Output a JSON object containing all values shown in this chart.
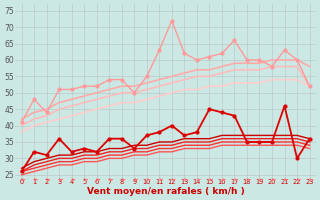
{
  "xlabel": "Vent moyen/en rafales ( km/h )",
  "background_color": "#cce8e4",
  "grid_color": "#aaaaaa",
  "x": [
    0,
    1,
    2,
    3,
    4,
    5,
    6,
    7,
    8,
    9,
    10,
    11,
    12,
    13,
    14,
    15,
    16,
    17,
    18,
    19,
    20,
    21,
    22,
    23
  ],
  "ylim": [
    24,
    77
  ],
  "yticks": [
    25,
    30,
    35,
    40,
    45,
    50,
    55,
    60,
    65,
    70,
    75
  ],
  "series": [
    {
      "y": [
        41,
        48,
        44,
        51,
        51,
        52,
        52,
        54,
        54,
        50,
        55,
        63,
        72,
        62,
        60,
        61,
        62,
        66,
        60,
        60,
        58,
        63,
        60,
        52
      ],
      "color": "#ff9999",
      "linewidth": 1.0,
      "marker": "o",
      "markersize": 2
    },
    {
      "y": [
        42,
        44,
        45,
        47,
        48,
        49,
        50,
        51,
        52,
        52,
        53,
        54,
        55,
        56,
        57,
        57,
        58,
        59,
        59,
        59,
        60,
        60,
        60,
        58
      ],
      "color": "#ffaaaa",
      "linewidth": 1.2,
      "marker": null,
      "markersize": 0
    },
    {
      "y": [
        40,
        42,
        43,
        45,
        46,
        47,
        48,
        49,
        50,
        50,
        51,
        52,
        53,
        54,
        55,
        55,
        56,
        57,
        57,
        57,
        58,
        58,
        58,
        52
      ],
      "color": "#ffbbbb",
      "linewidth": 1.2,
      "marker": null,
      "markersize": 0
    },
    {
      "y": [
        38,
        40,
        41,
        42,
        43,
        44,
        45,
        46,
        47,
        47,
        48,
        49,
        50,
        51,
        51,
        52,
        52,
        53,
        53,
        53,
        54,
        54,
        54,
        52
      ],
      "color": "#ffcccc",
      "linewidth": 1.2,
      "marker": null,
      "markersize": 0
    },
    {
      "y": [
        26,
        32,
        31,
        36,
        32,
        33,
        32,
        36,
        36,
        33,
        37,
        38,
        40,
        37,
        38,
        45,
        44,
        43,
        35,
        35,
        35,
        46,
        30,
        36
      ],
      "color": "#dd0000",
      "linewidth": 1.3,
      "marker": "o",
      "markersize": 2
    },
    {
      "y": [
        27,
        29,
        30,
        31,
        31,
        32,
        32,
        33,
        33,
        34,
        34,
        35,
        35,
        36,
        36,
        36,
        37,
        37,
        37,
        37,
        37,
        37,
        37,
        36
      ],
      "color": "#cc0000",
      "linewidth": 1.0,
      "marker": null,
      "markersize": 0
    },
    {
      "y": [
        26,
        28,
        29,
        30,
        30,
        31,
        31,
        32,
        32,
        33,
        33,
        34,
        34,
        35,
        35,
        35,
        36,
        36,
        36,
        36,
        36,
        36,
        36,
        35
      ],
      "color": "#ee2222",
      "linewidth": 1.0,
      "marker": null,
      "markersize": 0
    },
    {
      "y": [
        26,
        27,
        28,
        29,
        29,
        30,
        30,
        31,
        31,
        32,
        32,
        33,
        33,
        34,
        34,
        34,
        35,
        35,
        35,
        35,
        35,
        35,
        35,
        34
      ],
      "color": "#ff3333",
      "linewidth": 1.0,
      "marker": null,
      "markersize": 0
    },
    {
      "y": [
        25,
        26,
        27,
        28,
        28,
        29,
        29,
        30,
        30,
        31,
        31,
        32,
        32,
        33,
        33,
        33,
        34,
        34,
        34,
        34,
        34,
        34,
        34,
        33
      ],
      "color": "#ff5555",
      "linewidth": 1.0,
      "marker": null,
      "markersize": 0
    }
  ],
  "wind_arrow_color": "#ff7777"
}
